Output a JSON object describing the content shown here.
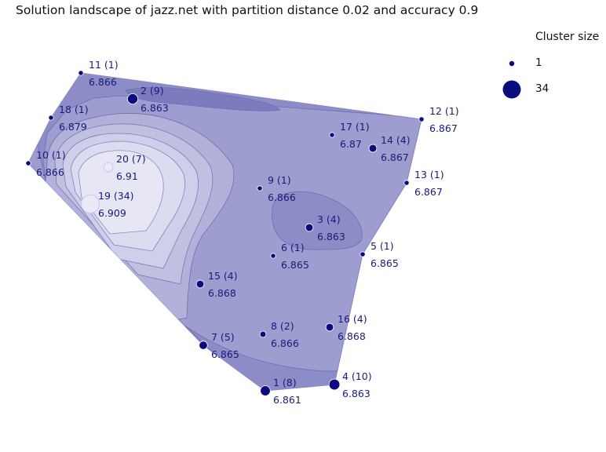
{
  "title": "Solution landscape of jazz.net with partition distance 0.02 and accuracy 0.9",
  "legend": {
    "title": "Cluster size",
    "entries": [
      {
        "label": "1",
        "size": 1
      },
      {
        "label": "34",
        "size": 34
      }
    ]
  },
  "colors": {
    "point": "#0b0b80",
    "point_light": "#e9e9f7",
    "contour_levels": [
      "#7b7bbd",
      "#8c8cc6",
      "#9d9dcf",
      "#b1b1da",
      "#c5c5e4",
      "#d8d8ee",
      "#e8e8f6"
    ],
    "contour_line": "#6f6fb3"
  },
  "chart_data": {
    "type": "scatter",
    "title": "Solution landscape of jazz.net with partition distance 0.02 and accuracy 0.9",
    "grid": false,
    "legend_position": "top-right",
    "points": [
      {
        "id": "1",
        "size": 8,
        "label": "1 (8)",
        "value": "6.861"
      },
      {
        "id": "2",
        "size": 9,
        "label": "2 (9)",
        "value": "6.863"
      },
      {
        "id": "3",
        "size": 4,
        "label": "3 (4)",
        "value": "6.863"
      },
      {
        "id": "4",
        "size": 10,
        "label": "4 (10)",
        "value": "6.863"
      },
      {
        "id": "5",
        "size": 1,
        "label": "5 (1)",
        "value": "6.865"
      },
      {
        "id": "6",
        "size": 1,
        "label": "6 (1)",
        "value": "6.865"
      },
      {
        "id": "7",
        "size": 5,
        "label": "7 (5)",
        "value": "6.865"
      },
      {
        "id": "8",
        "size": 2,
        "label": "8 (2)",
        "value": "6.866"
      },
      {
        "id": "9",
        "size": 1,
        "label": "9 (1)",
        "value": "6.866"
      },
      {
        "id": "10",
        "size": 1,
        "label": "10 (1)",
        "value": "6.866"
      },
      {
        "id": "11",
        "size": 1,
        "label": "11 (1)",
        "value": "6.866"
      },
      {
        "id": "12",
        "size": 1,
        "label": "12 (1)",
        "value": "6.867"
      },
      {
        "id": "13",
        "size": 1,
        "label": "13 (1)",
        "value": "6.867"
      },
      {
        "id": "14",
        "size": 4,
        "label": "14 (4)",
        "value": "6.867"
      },
      {
        "id": "15",
        "size": 4,
        "label": "15 (4)",
        "value": "6.868"
      },
      {
        "id": "16",
        "size": 4,
        "label": "16 (4)",
        "value": "6.868"
      },
      {
        "id": "17",
        "size": 1,
        "label": "17 (1)",
        "value": "6.87"
      },
      {
        "id": "18",
        "size": 1,
        "label": "18 (1)",
        "value": "6.879"
      },
      {
        "id": "19",
        "size": 34,
        "label": "19 (34)",
        "value": "6.909"
      },
      {
        "id": "20",
        "size": 7,
        "label": "20 (7)",
        "value": "6.91"
      }
    ]
  }
}
